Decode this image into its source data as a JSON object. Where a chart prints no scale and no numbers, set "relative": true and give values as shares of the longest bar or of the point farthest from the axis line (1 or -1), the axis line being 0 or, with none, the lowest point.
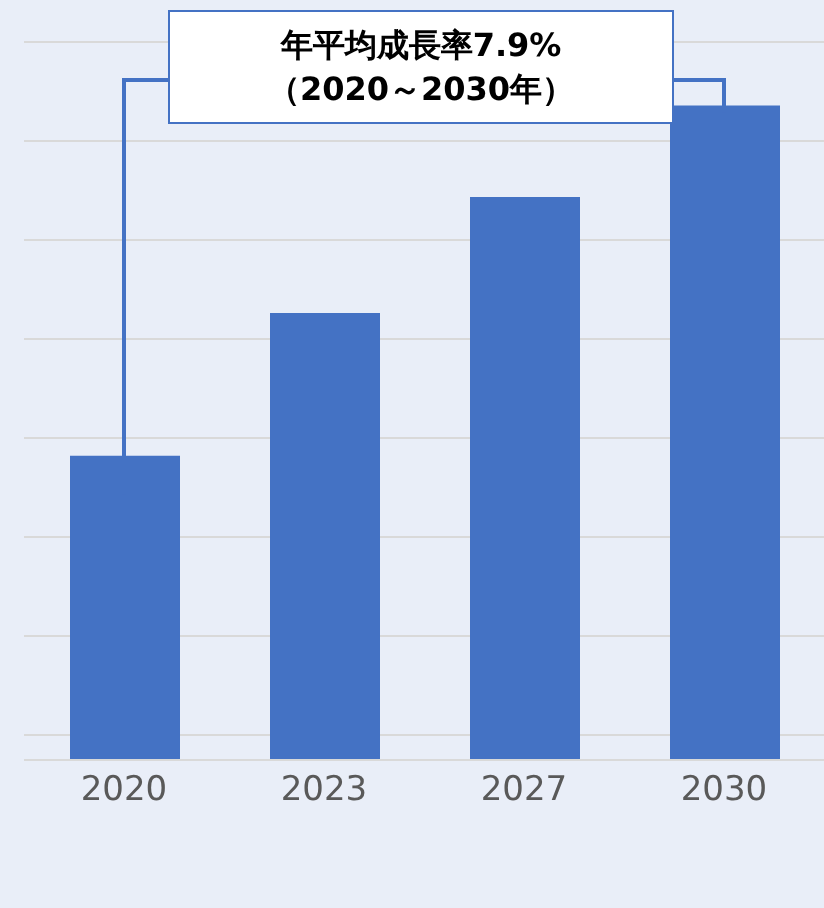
{
  "chart_data": {
    "type": "bar",
    "categories": [
      "2020",
      "2023",
      "2027",
      "2030"
    ],
    "values": [
      0.465,
      0.683,
      0.86,
      1
    ],
    "color": "#4472c4",
    "relative": true,
    "grid": "y",
    "annotations": [
      "年平均成長率7.9%\n（2020～2030年）"
    ]
  }
}
